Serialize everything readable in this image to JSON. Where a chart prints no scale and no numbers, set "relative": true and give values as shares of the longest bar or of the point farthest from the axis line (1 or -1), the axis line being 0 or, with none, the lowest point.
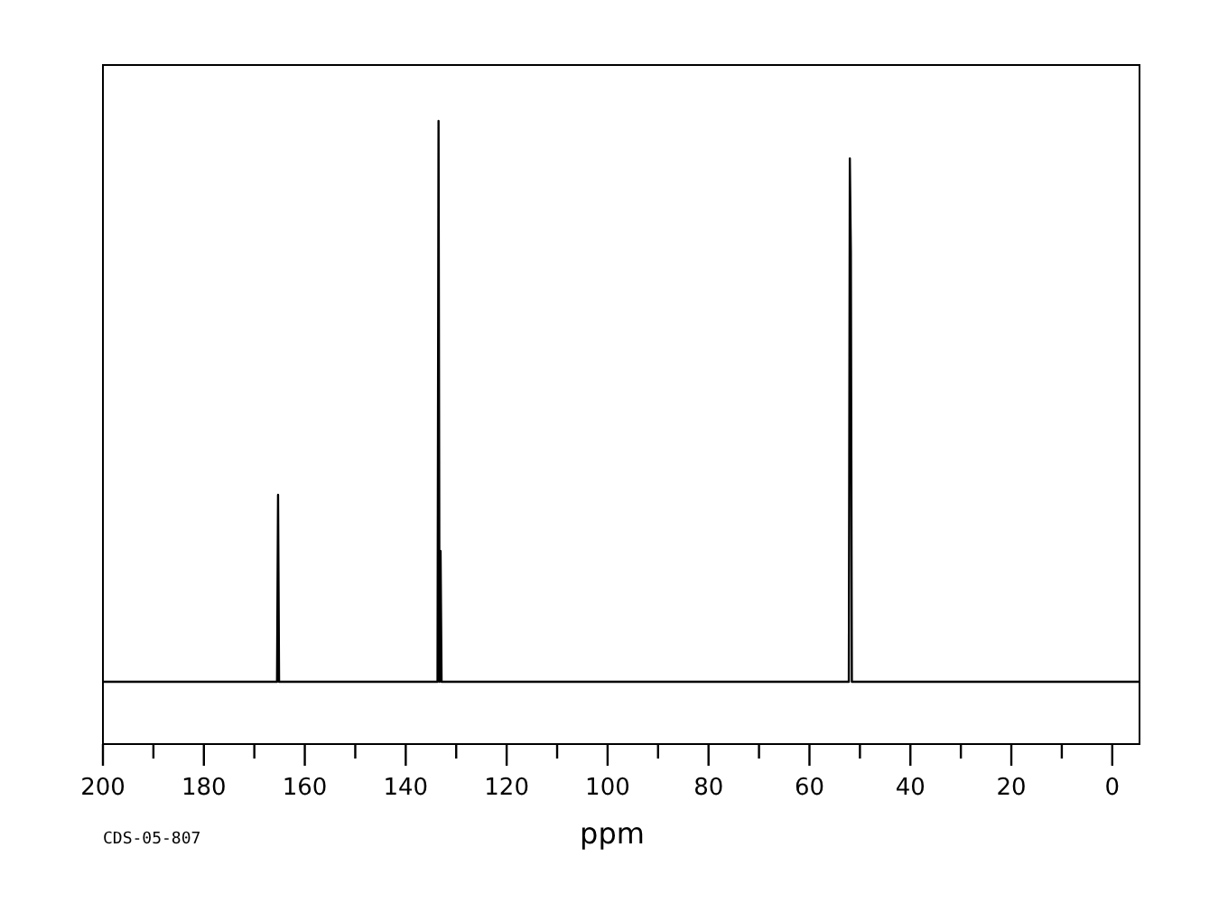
{
  "chart_data": {
    "type": "line",
    "relative": true,
    "xlabel": "ppm",
    "annotations": [
      "CDS-05-807"
    ],
    "xlim": [
      200,
      -5.4
    ],
    "xticks": [
      200,
      {
        "value": 190,
        "label": null
      },
      180,
      {
        "value": 170,
        "label": null
      },
      160,
      {
        "value": 150,
        "label": null
      },
      140,
      {
        "value": 130,
        "label": null
      },
      120,
      {
        "value": 110,
        "label": null
      },
      100,
      {
        "value": 90,
        "label": null
      },
      80,
      {
        "value": 70,
        "label": null
      },
      60,
      {
        "value": 50,
        "label": null
      },
      40,
      {
        "value": 30,
        "label": null
      },
      20,
      {
        "value": 10,
        "label": null
      },
      0
    ],
    "grid": false,
    "line_style": "solid",
    "series": [
      {
        "color": "#000000",
        "x": [
          200,
          165.5,
          165.3,
          165.1,
          133.7,
          133.5,
          133.3,
          133.1,
          132.9,
          52.2,
          52.0,
          51.8,
          51.6,
          -5.4
        ],
        "values": [
          0.1,
          0.1,
          0.4,
          0.1,
          0.1,
          1.0,
          0.1,
          0.31,
          0.1,
          0.1,
          0.94,
          0.79,
          0.1,
          0.1
        ]
      }
    ]
  }
}
